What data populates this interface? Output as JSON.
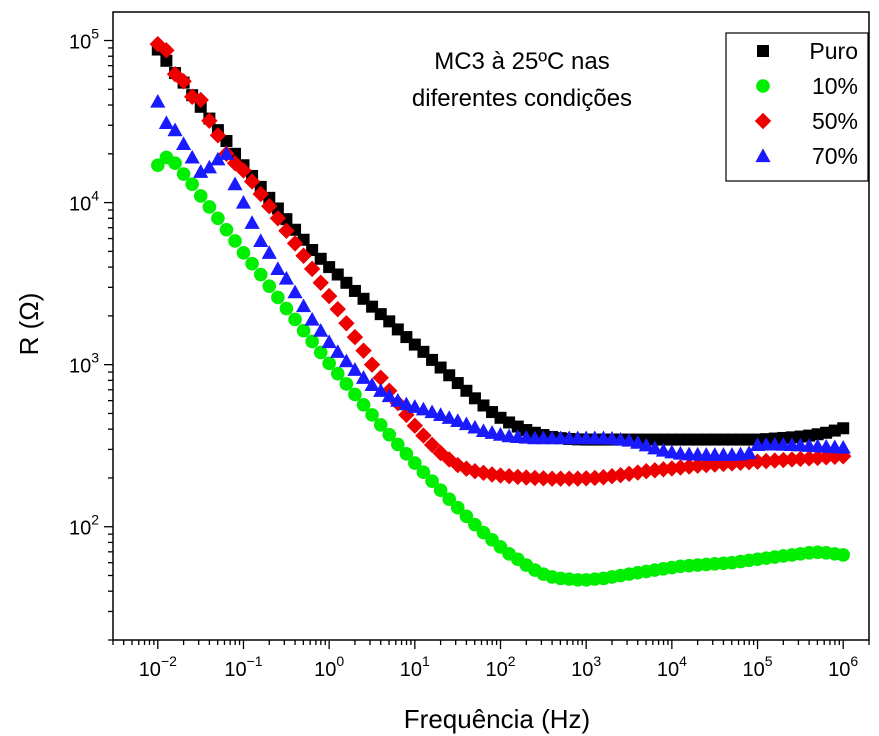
{
  "chart_data": {
    "type": "scatter",
    "title": "",
    "xlabel": "Frequência (Hz)",
    "ylabel": "R (Ω)",
    "xscale": "log",
    "yscale": "log",
    "xlim": [
      0.003,
      2000000
    ],
    "ylim": [
      20,
      150000
    ],
    "annotation": [
      "MC3 à 25ºC nas",
      "diferentes condições"
    ],
    "legend_position": "top-right",
    "x_ticks": [
      {
        "exp": -2
      },
      {
        "exp": -1
      },
      {
        "exp": 0
      },
      {
        "exp": 1
      },
      {
        "exp": 2
      },
      {
        "exp": 3
      },
      {
        "exp": 4
      },
      {
        "exp": 5
      },
      {
        "exp": 6
      }
    ],
    "y_ticks": [
      {
        "exp": 2
      },
      {
        "exp": 3
      },
      {
        "exp": 4
      },
      {
        "exp": 5
      }
    ],
    "tick_base": "10",
    "series": [
      {
        "name": "Puro",
        "color": "#000000",
        "marker": "square",
        "x": [
          0.01,
          0.0126,
          0.0159,
          0.02,
          0.0252,
          0.0317,
          0.04,
          0.0503,
          0.0633,
          0.0797,
          0.1,
          0.126,
          0.159,
          0.2,
          0.252,
          0.317,
          0.4,
          0.503,
          0.633,
          0.797,
          1,
          1.26,
          1.59,
          2,
          2.52,
          3.17,
          4,
          5.03,
          6.33,
          7.97,
          10,
          12.6,
          15.9,
          20,
          25.2,
          31.7,
          40,
          50.3,
          63.3,
          79.7,
          100,
          126,
          159,
          200,
          252,
          317,
          400,
          503,
          633,
          797,
          1000,
          1260,
          1590,
          2000,
          2520,
          3170,
          4000,
          5030,
          6330,
          7970,
          10000,
          12600,
          15900,
          20000,
          25200,
          31700,
          40000,
          50300,
          63300,
          79700,
          100000,
          126000,
          159000,
          200000,
          252000,
          317000,
          400000,
          503000,
          633000,
          797000,
          1000000
        ],
        "y": [
          88000,
          75000,
          63000,
          55000,
          46000,
          39000,
          33000,
          28000,
          24000,
          20000,
          17000,
          14600,
          12500,
          10700,
          9200,
          7900,
          6800,
          5900,
          5100,
          4500,
          4000,
          3600,
          3200,
          2850,
          2550,
          2280,
          2050,
          1850,
          1650,
          1480,
          1330,
          1200,
          1070,
          960,
          860,
          770,
          690,
          620,
          560,
          510,
          470,
          440,
          415,
          395,
          380,
          368,
          358,
          352,
          348,
          346,
          345,
          345,
          345,
          345,
          345,
          345,
          345,
          345,
          345,
          345,
          345,
          345,
          345,
          345,
          345,
          345,
          345,
          345,
          345,
          345,
          345,
          347,
          350,
          353,
          356,
          360,
          365,
          372,
          380,
          392,
          405
        ]
      },
      {
        "name": "10%",
        "color": "#00ee00",
        "marker": "circle",
        "x": [
          0.01,
          0.0126,
          0.0159,
          0.02,
          0.0252,
          0.0317,
          0.04,
          0.0503,
          0.0633,
          0.0797,
          0.1,
          0.126,
          0.159,
          0.2,
          0.252,
          0.317,
          0.4,
          0.503,
          0.633,
          0.797,
          1,
          1.26,
          1.59,
          2,
          2.52,
          3.17,
          4,
          5.03,
          6.33,
          7.97,
          10,
          12.6,
          15.9,
          20,
          25.2,
          31.7,
          40,
          50.3,
          63.3,
          79.7,
          100,
          126,
          159,
          200,
          252,
          317,
          400,
          503,
          633,
          797,
          1000,
          1260,
          1590,
          2000,
          2520,
          3170,
          4000,
          5030,
          6330,
          7970,
          10000,
          12600,
          15900,
          20000,
          25200,
          31700,
          40000,
          50300,
          63300,
          79700,
          100000,
          126000,
          159000,
          200000,
          252000,
          317000,
          400000,
          503000,
          633000,
          797000,
          1000000
        ],
        "y": [
          17000,
          19000,
          17500,
          15000,
          13000,
          11000,
          9400,
          8000,
          6800,
          5800,
          4900,
          4200,
          3600,
          3050,
          2600,
          2220,
          1900,
          1620,
          1390,
          1190,
          1020,
          880,
          760,
          655,
          565,
          490,
          425,
          370,
          322,
          282,
          247,
          217,
          191,
          168,
          148,
          131,
          116,
          103,
          92,
          83,
          75,
          68,
          63,
          58,
          54,
          51,
          49,
          48,
          47.5,
          47,
          47,
          47.5,
          48,
          49,
          50,
          51,
          52,
          53,
          54,
          55,
          56,
          57,
          57.5,
          58,
          58.5,
          59,
          59.5,
          60,
          61,
          62,
          63,
          64,
          65,
          66,
          67,
          68,
          69,
          69.5,
          69,
          68,
          67
        ]
      },
      {
        "name": "50%",
        "color": "#ee0000",
        "marker": "diamond",
        "x": [
          0.01,
          0.0126,
          0.0159,
          0.02,
          0.0252,
          0.0317,
          0.04,
          0.0503,
          0.0633,
          0.0797,
          0.1,
          0.126,
          0.159,
          0.2,
          0.252,
          0.317,
          0.4,
          0.503,
          0.633,
          0.797,
          1,
          1.26,
          1.59,
          2,
          2.52,
          3.17,
          4,
          5.03,
          6.33,
          7.97,
          10,
          12.6,
          15.9,
          20,
          25.2,
          31.7,
          40,
          50.3,
          63.3,
          79.7,
          100,
          126,
          159,
          200,
          252,
          317,
          400,
          503,
          633,
          797,
          1000,
          1260,
          1590,
          2000,
          2520,
          3170,
          4000,
          5030,
          6330,
          7970,
          10000,
          12600,
          15900,
          20000,
          25200,
          31700,
          40000,
          50300,
          63300,
          79700,
          100000,
          126000,
          159000,
          200000,
          252000,
          317000,
          400000,
          503000,
          633000,
          797000,
          1000000
        ],
        "y": [
          95000,
          87000,
          62000,
          56000,
          45000,
          43000,
          32000,
          26000,
          20000,
          17500,
          15800,
          13500,
          11300,
          9500,
          8000,
          6700,
          5600,
          4700,
          3900,
          3200,
          2650,
          2200,
          1800,
          1480,
          1220,
          1000,
          830,
          690,
          580,
          490,
          420,
          365,
          320,
          285,
          260,
          240,
          228,
          220,
          215,
          210,
          207,
          205,
          203,
          201,
          200,
          199,
          198,
          198,
          198,
          198,
          199,
          200,
          202,
          205,
          208,
          212,
          216,
          220,
          223,
          226,
          229,
          232,
          235,
          238,
          240,
          242,
          244,
          246,
          248,
          250,
          252,
          254,
          256,
          258,
          260,
          262,
          264,
          266,
          268,
          270,
          272
        ]
      },
      {
        "name": "70%",
        "color": "#1a1aff",
        "marker": "triangle",
        "x": [
          0.01,
          0.0126,
          0.0159,
          0.02,
          0.0252,
          0.0317,
          0.04,
          0.0503,
          0.0633,
          0.0797,
          0.1,
          0.126,
          0.159,
          0.2,
          0.252,
          0.317,
          0.4,
          0.503,
          0.633,
          0.797,
          1,
          1.26,
          1.59,
          2,
          2.52,
          3.17,
          4,
          5.03,
          6.33,
          7.97,
          10,
          12.6,
          15.9,
          20,
          25.2,
          31.7,
          40,
          50.3,
          63.3,
          79.7,
          100,
          126,
          159,
          200,
          252,
          317,
          400,
          503,
          633,
          797,
          1000,
          1260,
          1590,
          2000,
          2520,
          3170,
          4000,
          5030,
          6330,
          7970,
          10000,
          12600,
          15900,
          20000,
          25200,
          31700,
          40000,
          50300,
          63300,
          79700,
          100000,
          126000,
          159000,
          200000,
          252000,
          317000,
          400000,
          503000,
          633000,
          797000,
          1000000
        ],
        "y": [
          42000,
          31000,
          28000,
          23000,
          19000,
          15500,
          16500,
          18500,
          20000,
          13000,
          10000,
          7500,
          5800,
          4900,
          3900,
          3400,
          2800,
          2300,
          1900,
          1620,
          1380,
          1200,
          1050,
          930,
          830,
          750,
          690,
          640,
          600,
          570,
          550,
          530,
          510,
          490,
          470,
          450,
          430,
          410,
          390,
          380,
          370,
          362,
          358,
          355,
          352,
          352,
          352,
          352,
          352,
          352,
          352,
          352,
          352,
          350,
          345,
          340,
          330,
          318,
          305,
          295,
          288,
          283,
          280,
          279,
          278,
          278,
          278,
          278,
          280,
          285,
          320,
          322,
          322,
          321,
          320,
          318,
          316,
          314,
          312,
          310,
          308
        ]
      }
    ]
  }
}
